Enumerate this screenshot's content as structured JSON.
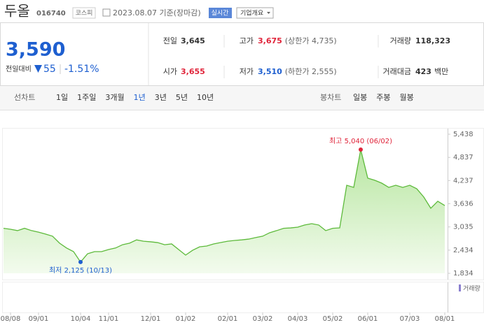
{
  "header": {
    "name": "두올",
    "code": "016740",
    "market": "코스피",
    "date": "2023.08.07 기준(장마감)",
    "realtime": "실시간",
    "company_info": "기업개요"
  },
  "summary": {
    "price": "3,590",
    "change_label": "전일대비",
    "change": "55",
    "change_rate": "-1.51%",
    "stats": [
      {
        "label": "전일",
        "value": "3,645"
      },
      {
        "label": "고가",
        "value": "3,675",
        "note": "(상한가 4,735)"
      },
      {
        "label": "거래량",
        "value": "118,323"
      },
      {
        "label": "시가",
        "value": "3,655"
      },
      {
        "label": "저가",
        "value": "3,510",
        "note": "(하한가 2,555)"
      },
      {
        "label": "거래대금",
        "value": "423",
        "unit": "백만"
      }
    ]
  },
  "tabs": {
    "line_label": "선차트",
    "line_periods": [
      "1일",
      "1주일",
      "3개월",
      "1년",
      "3년",
      "5년",
      "10년"
    ],
    "selected": "1년",
    "candle_label": "봉차트",
    "candle_periods": [
      "일봉",
      "주봉",
      "월봉"
    ]
  },
  "chart_data": {
    "type": "line",
    "color": "#5dba3b",
    "categories": [
      null,
      "08/08",
      null,
      null,
      null,
      "09/01",
      null,
      null,
      null,
      null,
      null,
      "10/04",
      null,
      null,
      null,
      "11/01",
      null,
      null,
      null,
      null,
      null,
      "12/01",
      null,
      null,
      null,
      null,
      "01/02",
      null,
      null,
      null,
      null,
      null,
      "02/01",
      null,
      null,
      null,
      null,
      "03/02",
      null,
      null,
      null,
      null,
      "04/03",
      null,
      null,
      null,
      null,
      "05/02",
      null,
      null,
      null,
      null,
      "06/01",
      null,
      null,
      null,
      null,
      null,
      "07/03",
      null,
      null,
      null,
      null,
      "08/01"
    ],
    "values": [
      3000,
      2975,
      2940,
      3000,
      2940,
      2900,
      2850,
      2795,
      2615,
      2490,
      2395,
      2125,
      2340,
      2395,
      2395,
      2450,
      2490,
      2575,
      2615,
      2700,
      2665,
      2650,
      2630,
      2575,
      2595,
      2450,
      2305,
      2430,
      2520,
      2540,
      2595,
      2630,
      2665,
      2685,
      2700,
      2720,
      2760,
      2795,
      2885,
      2940,
      3000,
      3010,
      3030,
      3085,
      3120,
      3085,
      2940,
      3000,
      3010,
      4115,
      4060,
      5040,
      4300,
      4245,
      4170,
      4060,
      4115,
      4060,
      4115,
      4025,
      3810,
      3520,
      3700,
      3590
    ],
    "max_label": "최고 5,040 (06/02)",
    "min_label": "최저 2,125 (10/13)",
    "volume_label": "거래량",
    "ylim": [
      1834,
      5438
    ],
    "yticks": [
      {
        "value": 5438,
        "label": "5,438"
      },
      {
        "value": 4837,
        "label": "4,837"
      },
      {
        "value": 4237,
        "label": "4,237"
      },
      {
        "value": 3636,
        "label": "3,636"
      },
      {
        "value": 3035,
        "label": "3,035"
      },
      {
        "value": 2434,
        "label": "2,434"
      },
      {
        "value": 1834,
        "label": "1,834"
      }
    ]
  }
}
